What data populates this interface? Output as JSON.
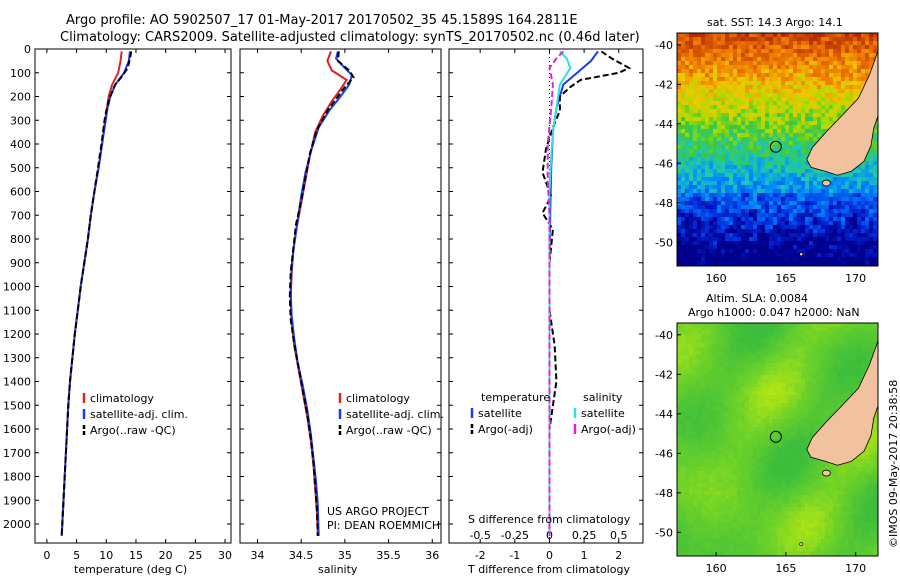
{
  "header": {
    "line1": "Argo profile: AO 5902507_17 01-May-2017 20170502_35 45.1589S 164.2811E",
    "line2": "Climatology: CARS2009. Satellite-adjusted climatology: synTS_20170502.nc (0.46d later)"
  },
  "credits": {
    "project": "US ARGO PROJECT",
    "pi": "PI: DEAN ROEMMICH",
    "imos": "©IMOS 09-May-2017 20:38:58"
  },
  "colors": {
    "climatology": "#e02020",
    "satellite": "#1a3cf0",
    "argo": "#000000",
    "sal_satellite": "#30e0e0",
    "sal_argo": "#e020e0"
  },
  "chart_data": [
    {
      "type": "line",
      "id": "temperature",
      "xlabel": "temperature (deg C)",
      "ylabel": "",
      "xlim": [
        -2,
        31
      ],
      "ylim": [
        2080,
        0
      ],
      "xticks": [
        0,
        5,
        10,
        15,
        20,
        25,
        30
      ],
      "yticks": [
        0,
        100,
        200,
        300,
        400,
        500,
        600,
        700,
        800,
        900,
        1000,
        1100,
        1200,
        1300,
        1400,
        1500,
        1600,
        1700,
        1800,
        1900,
        2000
      ],
      "legend": [
        "climatology",
        "satellite-adj. clim.",
        "Argo(..raw -QC)"
      ],
      "series": [
        {
          "name": "climatology",
          "style": "solid",
          "points": [
            [
              12.6,
              10
            ],
            [
              12.4,
              50
            ],
            [
              12.0,
              100
            ],
            [
              11.0,
              150
            ],
            [
              10.4,
              200
            ],
            [
              10.1,
              250
            ],
            [
              9.8,
              300
            ],
            [
              9.3,
              400
            ],
            [
              8.7,
              500
            ],
            [
              8.0,
              600
            ],
            [
              7.4,
              700
            ],
            [
              6.9,
              800
            ],
            [
              6.3,
              900
            ],
            [
              5.7,
              1000
            ],
            [
              5.2,
              1100
            ],
            [
              4.7,
              1200
            ],
            [
              4.3,
              1300
            ],
            [
              3.9,
              1400
            ],
            [
              3.6,
              1500
            ],
            [
              3.4,
              1600
            ],
            [
              3.2,
              1700
            ],
            [
              3.0,
              1800
            ],
            [
              2.8,
              1900
            ],
            [
              2.6,
              2000
            ],
            [
              2.5,
              2050
            ]
          ]
        },
        {
          "name": "satellite-adj. clim.",
          "style": "solid",
          "points": [
            [
              14.0,
              10
            ],
            [
              13.8,
              50
            ],
            [
              13.0,
              100
            ],
            [
              11.5,
              150
            ],
            [
              10.7,
              200
            ],
            [
              10.2,
              250
            ],
            [
              9.9,
              300
            ],
            [
              9.3,
              400
            ],
            [
              8.7,
              500
            ],
            [
              8.0,
              600
            ],
            [
              7.4,
              700
            ],
            [
              6.9,
              800
            ],
            [
              6.3,
              900
            ],
            [
              5.7,
              1000
            ],
            [
              5.2,
              1100
            ],
            [
              4.7,
              1200
            ],
            [
              4.3,
              1300
            ],
            [
              3.9,
              1400
            ],
            [
              3.6,
              1500
            ],
            [
              3.4,
              1600
            ],
            [
              3.2,
              1700
            ],
            [
              3.0,
              1800
            ],
            [
              2.8,
              1900
            ],
            [
              2.6,
              2000
            ],
            [
              2.5,
              2050
            ]
          ]
        },
        {
          "name": "Argo(..raw -QC)",
          "style": "dashed",
          "points": [
            [
              14.2,
              10
            ],
            [
              14.0,
              40
            ],
            [
              13.6,
              80
            ],
            [
              12.5,
              120
            ],
            [
              11.5,
              150
            ],
            [
              11.0,
              180
            ],
            [
              10.5,
              210
            ],
            [
              10.0,
              260
            ],
            [
              9.7,
              300
            ],
            [
              9.2,
              400
            ],
            [
              8.6,
              500
            ],
            [
              8.0,
              600
            ],
            [
              7.4,
              700
            ],
            [
              6.9,
              800
            ],
            [
              6.3,
              900
            ],
            [
              5.7,
              1000
            ],
            [
              5.2,
              1100
            ],
            [
              4.7,
              1200
            ],
            [
              4.3,
              1300
            ],
            [
              3.9,
              1400
            ],
            [
              3.6,
              1500
            ],
            [
              3.4,
              1600
            ],
            [
              3.2,
              1700
            ],
            [
              3.0,
              1800
            ],
            [
              2.8,
              1900
            ],
            [
              2.6,
              2000
            ],
            [
              2.5,
              2050
            ]
          ]
        }
      ]
    },
    {
      "type": "line",
      "id": "salinity",
      "xlabel": "salinity",
      "ylabel": "",
      "xlim": [
        33.8,
        36.1
      ],
      "ylim": [
        2080,
        0
      ],
      "xticks": [
        34,
        34.5,
        35,
        35.5,
        36
      ],
      "legend": [
        "climatology",
        "satellite-adj. clim.",
        "Argo(..raw -QC)"
      ],
      "series": [
        {
          "name": "climatology",
          "style": "solid",
          "points": [
            [
              34.84,
              10
            ],
            [
              34.8,
              50
            ],
            [
              34.85,
              90
            ],
            [
              35.02,
              130
            ],
            [
              34.95,
              170
            ],
            [
              34.85,
              220
            ],
            [
              34.75,
              280
            ],
            [
              34.66,
              350
            ],
            [
              34.6,
              450
            ],
            [
              34.55,
              550
            ],
            [
              34.5,
              650
            ],
            [
              34.45,
              750
            ],
            [
              34.41,
              850
            ],
            [
              34.39,
              950
            ],
            [
              34.38,
              1050
            ],
            [
              34.39,
              1150
            ],
            [
              34.42,
              1250
            ],
            [
              34.47,
              1350
            ],
            [
              34.52,
              1450
            ],
            [
              34.57,
              1550
            ],
            [
              34.61,
              1650
            ],
            [
              34.64,
              1750
            ],
            [
              34.66,
              1850
            ],
            [
              34.68,
              1950
            ],
            [
              34.69,
              2050
            ]
          ]
        },
        {
          "name": "satellite-adj. clim.",
          "style": "solid",
          "points": [
            [
              34.92,
              10
            ],
            [
              34.9,
              40
            ],
            [
              35.0,
              80
            ],
            [
              35.08,
              110
            ],
            [
              35.05,
              150
            ],
            [
              34.95,
              200
            ],
            [
              34.82,
              260
            ],
            [
              34.7,
              330
            ],
            [
              34.62,
              420
            ],
            [
              34.55,
              520
            ],
            [
              34.5,
              620
            ],
            [
              34.46,
              720
            ],
            [
              34.42,
              820
            ],
            [
              34.39,
              920
            ],
            [
              34.38,
              1020
            ],
            [
              34.39,
              1120
            ],
            [
              34.42,
              1220
            ],
            [
              34.46,
              1320
            ],
            [
              34.52,
              1420
            ],
            [
              34.57,
              1520
            ],
            [
              34.61,
              1620
            ],
            [
              34.64,
              1720
            ],
            [
              34.67,
              1820
            ],
            [
              34.69,
              1920
            ],
            [
              34.7,
              2050
            ]
          ]
        },
        {
          "name": "Argo(..raw -QC)",
          "style": "dashed",
          "points": [
            [
              34.93,
              10
            ],
            [
              34.92,
              50
            ],
            [
              35.05,
              90
            ],
            [
              35.1,
              120
            ],
            [
              35.0,
              160
            ],
            [
              34.9,
              210
            ],
            [
              34.8,
              260
            ],
            [
              34.68,
              340
            ],
            [
              34.6,
              440
            ],
            [
              34.55,
              540
            ],
            [
              34.5,
              640
            ],
            [
              34.44,
              740
            ],
            [
              34.41,
              840
            ],
            [
              34.38,
              940
            ],
            [
              34.37,
              1040
            ],
            [
              34.38,
              1140
            ],
            [
              34.42,
              1240
            ],
            [
              34.47,
              1340
            ],
            [
              34.52,
              1440
            ],
            [
              34.57,
              1540
            ],
            [
              34.61,
              1640
            ],
            [
              34.64,
              1740
            ],
            [
              34.66,
              1840
            ],
            [
              34.68,
              1940
            ],
            [
              34.69,
              2050
            ]
          ]
        }
      ]
    },
    {
      "type": "line",
      "id": "difference",
      "xlabel": "T difference from climatology",
      "xlabel_top": "S difference from climatology",
      "xlim": [
        -2.9,
        2.7
      ],
      "ylim": [
        2080,
        0
      ],
      "xticks": [
        -2,
        -1,
        0,
        1,
        2
      ],
      "xticks_top": [
        "-0.5",
        "-0.25",
        "0",
        "0.25",
        "0.5"
      ],
      "xticks_top_pos": [
        -2,
        -1,
        0,
        1,
        2
      ],
      "legend_temperature_title": "temperature",
      "legend_salinity_title": "salinity",
      "legend": [
        "satellite",
        "Argo(-adj)"
      ],
      "series": [
        {
          "name": "satellite",
          "group": "temperature",
          "style": "solid",
          "points": [
            [
              1.4,
              10
            ],
            [
              1.2,
              50
            ],
            [
              0.8,
              100
            ],
            [
              0.4,
              150
            ],
            [
              0.2,
              250
            ],
            [
              0.1,
              350
            ],
            [
              0.05,
              500
            ],
            [
              0.02,
              700
            ],
            [
              0.0,
              900
            ],
            [
              0.0,
              1100
            ],
            [
              0.0,
              1300
            ],
            [
              0.0,
              1500
            ],
            [
              0.0,
              1700
            ],
            [
              0.0,
              1900
            ],
            [
              0.0,
              2050
            ]
          ]
        },
        {
          "name": "Argo(-adj)",
          "group": "temperature",
          "style": "dashed",
          "points": [
            [
              1.5,
              10
            ],
            [
              1.8,
              40
            ],
            [
              2.3,
              80
            ],
            [
              2.0,
              100
            ],
            [
              0.9,
              130
            ],
            [
              0.6,
              160
            ],
            [
              0.3,
              200
            ],
            [
              0.3,
              260
            ],
            [
              0.1,
              330
            ],
            [
              -0.1,
              420
            ],
            [
              -0.2,
              520
            ],
            [
              0.05,
              620
            ],
            [
              -0.2,
              690
            ],
            [
              0.1,
              760
            ],
            [
              0.0,
              900
            ],
            [
              0.0,
              1100
            ],
            [
              0.15,
              1250
            ],
            [
              0.2,
              1400
            ],
            [
              0.0,
              1600
            ],
            [
              0.0,
              1800
            ],
            [
              0.0,
              2050
            ]
          ]
        },
        {
          "name": "satellite",
          "group": "salinity",
          "style": "solid",
          "points": [
            [
              0.3,
              10
            ],
            [
              0.5,
              40
            ],
            [
              0.6,
              80
            ],
            [
              0.3,
              150
            ],
            [
              0.2,
              250
            ],
            [
              0.1,
              350
            ],
            [
              0.05,
              450
            ],
            [
              0.0,
              600
            ],
            [
              0.0,
              800
            ],
            [
              0.0,
              1000
            ],
            [
              0.0,
              1300
            ],
            [
              0.0,
              1600
            ],
            [
              0.0,
              1900
            ],
            [
              0.0,
              2050
            ]
          ]
        },
        {
          "name": "Argo(-adj)",
          "group": "salinity",
          "style": "dashed",
          "points": [
            [
              0.4,
              10
            ],
            [
              0.2,
              40
            ],
            [
              0.0,
              80
            ],
            [
              0.1,
              150
            ],
            [
              0.05,
              250
            ],
            [
              -0.05,
              400
            ],
            [
              -0.05,
              550
            ],
            [
              0.0,
              700
            ],
            [
              0.0,
              900
            ],
            [
              0.0,
              1100
            ],
            [
              0.0,
              1300
            ],
            [
              0.0,
              1500
            ],
            [
              0.0,
              1700
            ],
            [
              0.0,
              1900
            ],
            [
              0.0,
              2050
            ]
          ]
        }
      ]
    },
    {
      "type": "heatmap",
      "id": "sst_map",
      "title": "sat. SST: 14.3 Argo: 14.1",
      "xlim": [
        157.2,
        171.6
      ],
      "ylim": [
        -51.2,
        -39.4
      ],
      "xticks": [
        160,
        165,
        170
      ],
      "yticks": [
        -40,
        -42,
        -44,
        -46,
        -48,
        -50
      ],
      "float_position": [
        164.28,
        -45.16
      ]
    },
    {
      "type": "heatmap",
      "id": "sla_map",
      "title": "Altim. SLA: 0.0084",
      "subtitle": "Argo h1000: 0.047 h2000: NaN",
      "xlim": [
        157.2,
        171.6
      ],
      "ylim": [
        -51.2,
        -39.4
      ],
      "xticks": [
        160,
        165,
        170
      ],
      "yticks": [
        -40,
        -42,
        -44,
        -46,
        -48,
        -50
      ],
      "float_position": [
        164.28,
        -45.16
      ]
    }
  ]
}
